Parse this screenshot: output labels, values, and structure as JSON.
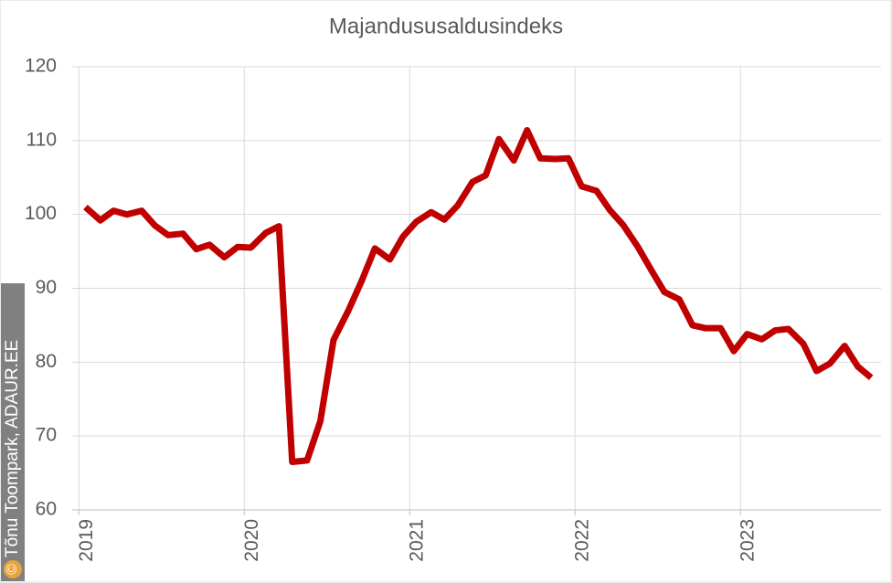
{
  "chart_data": {
    "type": "line",
    "title": "Majandususaldusindeks",
    "credit_symbol": "©",
    "credit": "Tõnu Toompark, ADAUR.EE",
    "x": [
      2019.04,
      2019.13,
      2019.21,
      2019.29,
      2019.38,
      2019.46,
      2019.54,
      2019.63,
      2019.71,
      2019.79,
      2019.88,
      2019.96,
      2020.04,
      2020.13,
      2020.21,
      2020.29,
      2020.38,
      2020.46,
      2020.54,
      2020.63,
      2020.71,
      2020.79,
      2020.88,
      2020.96,
      2021.04,
      2021.13,
      2021.21,
      2021.29,
      2021.38,
      2021.46,
      2021.54,
      2021.63,
      2021.71,
      2021.79,
      2021.88,
      2021.96,
      2022.04,
      2022.13,
      2022.21,
      2022.29,
      2022.38,
      2022.46,
      2022.54,
      2022.63,
      2022.71,
      2022.79,
      2022.88,
      2022.96,
      2023.04,
      2023.13,
      2023.21,
      2023.29,
      2023.38,
      2023.46,
      2023.54,
      2023.63,
      2023.71,
      2023.79
    ],
    "series": [
      {
        "color": "#c00000",
        "values": [
          101.0,
          99.2,
          100.5,
          100.0,
          100.5,
          98.5,
          97.2,
          97.4,
          95.3,
          95.9,
          94.2,
          95.6,
          95.5,
          97.5,
          98.4,
          66.5,
          66.7,
          72.0,
          83.0,
          87.0,
          91.0,
          95.4,
          93.9,
          97.0,
          99.0,
          100.3,
          99.3,
          101.2,
          104.4,
          105.3,
          110.2,
          107.3,
          111.4,
          107.6,
          107.5,
          107.6,
          103.8,
          103.2,
          100.6,
          98.6,
          95.6,
          92.5,
          89.5,
          88.5,
          85.0,
          84.6,
          84.6,
          81.5,
          83.8,
          83.1,
          84.3,
          84.5,
          82.5,
          78.8,
          79.8,
          82.2,
          79.4,
          77.9
        ]
      }
    ],
    "xlim": [
      2018.96,
      2023.85
    ],
    "xticks": [
      2019,
      2020,
      2021,
      2022,
      2023
    ],
    "ylim": [
      60,
      120
    ],
    "yticks": [
      60,
      70,
      80,
      90,
      100,
      110,
      120
    ],
    "grid": true
  }
}
